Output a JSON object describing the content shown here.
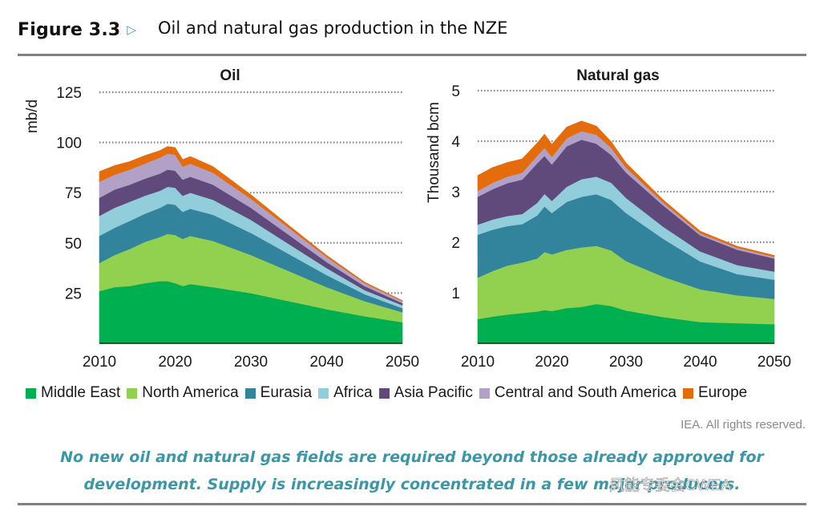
{
  "header": {
    "figure_number": "Figure 3.3",
    "arrow_icon": "triangle-right-icon",
    "title": "Oil and natural gas production in the NZE"
  },
  "legend": [
    {
      "label": "Middle East",
      "color": "#00b050"
    },
    {
      "label": "North America",
      "color": "#92d050"
    },
    {
      "label": "Eurasia",
      "color": "#31849b"
    },
    {
      "label": "Africa",
      "color": "#92cddc"
    },
    {
      "label": "Asia Pacific",
      "color": "#604a7b"
    },
    {
      "label": "Central and South America",
      "color": "#b2a1c7"
    },
    {
      "label": "Europe",
      "color": "#e46c0a"
    }
  ],
  "credit": "IEA. All rights reserved.",
  "caption": "No new oil and natural gas fields are required beyond those already approved for development. Supply is increasingly concentrated in a few major producers.",
  "watermark": "风能专委会CWEA",
  "chart_data": [
    {
      "type": "area",
      "stacked": true,
      "title": "Oil",
      "xlabel": "",
      "ylabel": "mb/d",
      "xlim": [
        2010,
        2050
      ],
      "ylim": [
        0,
        125
      ],
      "xticks": [
        "2010",
        "2020",
        "2030",
        "2040",
        "2050"
      ],
      "yticks": [
        "25",
        "50",
        "75",
        "100",
        "125"
      ],
      "grid": "horizontal-dotted",
      "legend_position": "bottom",
      "x": [
        2010,
        2012,
        2014,
        2016,
        2018,
        2019,
        2020,
        2021,
        2022,
        2025,
        2030,
        2035,
        2040,
        2045,
        2050
      ],
      "series": [
        {
          "name": "Middle East",
          "values": [
            26,
            28,
            28.5,
            30,
            31,
            31,
            30,
            28.5,
            29.5,
            28,
            25,
            21,
            17,
            13.5,
            10.5
          ]
        },
        {
          "name": "North America",
          "values": [
            14,
            16,
            18.5,
            20.5,
            22,
            23.5,
            24,
            23.5,
            24,
            23,
            19,
            15,
            11,
            7.5,
            5
          ]
        },
        {
          "name": "Eurasia",
          "values": [
            13.5,
            13.5,
            14,
            14,
            14.5,
            15,
            15,
            13.5,
            13.5,
            13,
            11,
            8.5,
            6,
            3.5,
            2
          ]
        },
        {
          "name": "Africa",
          "values": [
            10,
            10,
            9.5,
            9,
            8.5,
            8.5,
            8.5,
            8,
            8,
            7.5,
            6.5,
            5,
            3.5,
            2,
            1.5
          ]
        },
        {
          "name": "Asia Pacific",
          "values": [
            9,
            9,
            8.5,
            8.5,
            8.5,
            8.5,
            8.5,
            8,
            8,
            7.5,
            6,
            4.5,
            3,
            2,
            1
          ]
        },
        {
          "name": "Central and South America",
          "values": [
            8,
            7.5,
            7.5,
            7.5,
            8,
            8,
            8,
            6.5,
            6.5,
            6,
            4.5,
            3.5,
            2.5,
            1.5,
            1
          ]
        },
        {
          "name": "Europe",
          "values": [
            5,
            4.5,
            4,
            4,
            3.5,
            3.5,
            3.5,
            3.5,
            3.5,
            3,
            2,
            1.2,
            0.8,
            0.5,
            0.3
          ]
        }
      ]
    },
    {
      "type": "area",
      "stacked": true,
      "title": "Natural gas",
      "xlabel": "",
      "ylabel": "Thousand bcm",
      "xlim": [
        2010,
        2050
      ],
      "ylim": [
        0,
        5
      ],
      "xticks": [
        "2010",
        "2020",
        "2030",
        "2040",
        "2050"
      ],
      "yticks": [
        "1",
        "2",
        "3",
        "4",
        "5"
      ],
      "grid": "horizontal-dotted",
      "legend_position": "bottom",
      "x": [
        2010,
        2012,
        2014,
        2016,
        2018,
        2019,
        2020,
        2022,
        2024,
        2026,
        2028,
        2030,
        2035,
        2040,
        2045,
        2050
      ],
      "series": [
        {
          "name": "Middle East",
          "values": [
            0.48,
            0.53,
            0.57,
            0.6,
            0.63,
            0.66,
            0.64,
            0.7,
            0.72,
            0.78,
            0.74,
            0.65,
            0.52,
            0.42,
            0.4,
            0.38
          ]
        },
        {
          "name": "North America",
          "values": [
            0.82,
            0.9,
            0.97,
            1.0,
            1.05,
            1.15,
            1.12,
            1.15,
            1.18,
            1.15,
            1.1,
            0.98,
            0.8,
            0.65,
            0.55,
            0.5
          ]
        },
        {
          "name": "Eurasia",
          "values": [
            0.85,
            0.82,
            0.78,
            0.76,
            0.85,
            0.9,
            0.82,
            0.95,
            1.0,
            1.02,
            1.0,
            0.95,
            0.75,
            0.55,
            0.42,
            0.38
          ]
        },
        {
          "name": "Africa",
          "values": [
            0.2,
            0.2,
            0.2,
            0.2,
            0.25,
            0.25,
            0.24,
            0.3,
            0.35,
            0.35,
            0.34,
            0.3,
            0.24,
            0.2,
            0.18,
            0.16
          ]
        },
        {
          "name": "Asia Pacific",
          "values": [
            0.55,
            0.6,
            0.65,
            0.68,
            0.78,
            0.75,
            0.72,
            0.8,
            0.78,
            0.65,
            0.55,
            0.5,
            0.42,
            0.32,
            0.3,
            0.26
          ]
        },
        {
          "name": "Central and South America",
          "values": [
            0.12,
            0.13,
            0.13,
            0.14,
            0.15,
            0.16,
            0.15,
            0.16,
            0.17,
            0.18,
            0.14,
            0.1,
            0.06,
            0.04,
            0.04,
            0.03
          ]
        },
        {
          "name": "Europe",
          "values": [
            0.3,
            0.3,
            0.28,
            0.27,
            0.25,
            0.27,
            0.25,
            0.22,
            0.2,
            0.17,
            0.12,
            0.09,
            0.05,
            0.04,
            0.03,
            0.03
          ]
        }
      ]
    }
  ]
}
